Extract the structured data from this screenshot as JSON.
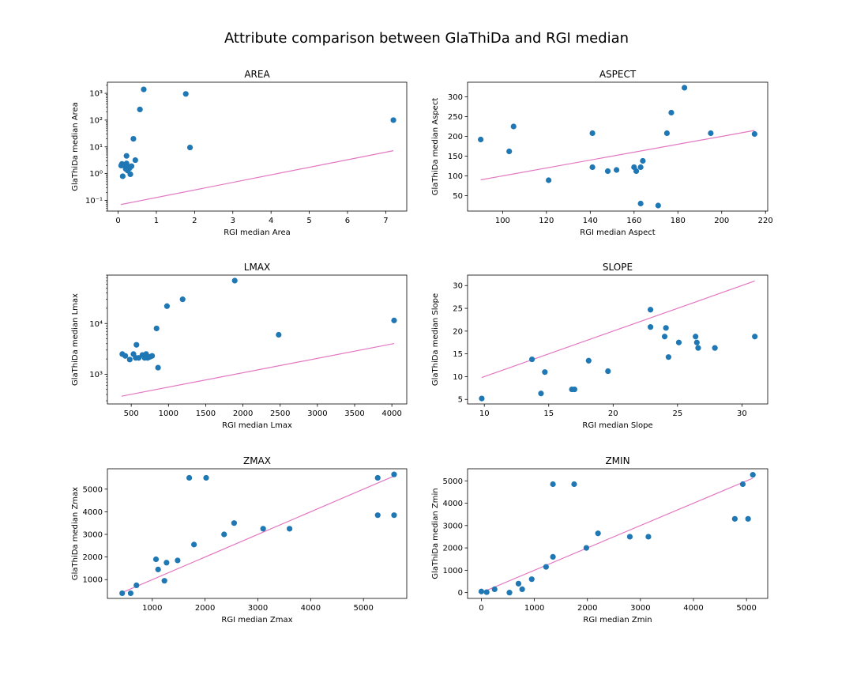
{
  "title": "Attribute comparison between GlaThiDa and RGI median",
  "colors": {
    "point": "#1f77b4",
    "line": "#e377c2",
    "axis": "#000000"
  },
  "chart_data": [
    {
      "type": "scatter",
      "title": "AREA",
      "xlabel": "RGI median Area",
      "ylabel": "GlaThiDa median Area",
      "xscale": "linear",
      "yscale": "log",
      "xlim": [
        -0.28,
        7.55
      ],
      "ylim": [
        0.04,
        2600
      ],
      "xticks": [
        0,
        1,
        2,
        3,
        4,
        5,
        6,
        7
      ],
      "xtick_labels": [
        "0",
        "1",
        "2",
        "3",
        "4",
        "5",
        "6",
        "7"
      ],
      "yticks": [
        0.1,
        1,
        10,
        100,
        1000
      ],
      "ytick_labels": [
        "10⁻¹",
        "10⁰",
        "10¹",
        "10²",
        "10³"
      ],
      "points": [
        [
          0.08,
          2.0
        ],
        [
          0.1,
          2.3
        ],
        [
          0.12,
          0.8
        ],
        [
          0.15,
          2.1
        ],
        [
          0.18,
          1.9
        ],
        [
          0.2,
          1.5
        ],
        [
          0.22,
          2.4
        ],
        [
          0.22,
          4.6
        ],
        [
          0.25,
          1.3
        ],
        [
          0.28,
          1.8
        ],
        [
          0.3,
          1.6
        ],
        [
          0.32,
          0.95
        ],
        [
          0.35,
          1.9
        ],
        [
          0.4,
          20
        ],
        [
          0.45,
          3.2
        ],
        [
          0.57,
          250
        ],
        [
          0.67,
          1400
        ],
        [
          1.77,
          950
        ],
        [
          1.88,
          9.5
        ],
        [
          7.2,
          100
        ]
      ],
      "line": {
        "x": [
          0.07,
          7.2
        ],
        "y": [
          0.07,
          7.2
        ]
      }
    },
    {
      "type": "scatter",
      "title": "ASPECT",
      "xlabel": "RGI median Aspect",
      "ylabel": "GlaThiDa median Aspect",
      "xscale": "linear",
      "yscale": "linear",
      "xlim": [
        84,
        221
      ],
      "ylim": [
        11,
        337
      ],
      "xticks": [
        100,
        120,
        140,
        160,
        180,
        200,
        220
      ],
      "xtick_labels": [
        "100",
        "120",
        "140",
        "160",
        "180",
        "200",
        "220"
      ],
      "yticks": [
        50,
        100,
        150,
        200,
        250,
        300
      ],
      "ytick_labels": [
        "50",
        "100",
        "150",
        "200",
        "250",
        "300"
      ],
      "points": [
        [
          90,
          192
        ],
        [
          103,
          162
        ],
        [
          105,
          225
        ],
        [
          121,
          89
        ],
        [
          141,
          208
        ],
        [
          141,
          122
        ],
        [
          148,
          112
        ],
        [
          152,
          115
        ],
        [
          160,
          122
        ],
        [
          161,
          112
        ],
        [
          163,
          122
        ],
        [
          163,
          30
        ],
        [
          164,
          138
        ],
        [
          171,
          25
        ],
        [
          175,
          208
        ],
        [
          177,
          260
        ],
        [
          183,
          323
        ],
        [
          195,
          208
        ],
        [
          215,
          206
        ]
      ],
      "line": {
        "x": [
          90,
          215
        ],
        "y": [
          90,
          215
        ]
      }
    },
    {
      "type": "scatter",
      "title": "LMAX",
      "xlabel": "RGI median Lmax",
      "ylabel": "GlaThiDa median Lmax",
      "xscale": "linear",
      "yscale": "log",
      "xlim": [
        180,
        4200
      ],
      "ylim": [
        260,
        90000
      ],
      "xticks": [
        500,
        1000,
        1500,
        2000,
        2500,
        3000,
        3500,
        4000
      ],
      "xtick_labels": [
        "500",
        "1000",
        "1500",
        "2000",
        "2500",
        "3000",
        "3500",
        "4000"
      ],
      "yticks": [
        1000,
        10000
      ],
      "ytick_labels": [
        "10³",
        "10⁴"
      ],
      "points": [
        [
          380,
          2500
        ],
        [
          420,
          2300
        ],
        [
          480,
          1950
        ],
        [
          530,
          2500
        ],
        [
          560,
          2100
        ],
        [
          570,
          3800
        ],
        [
          600,
          2100
        ],
        [
          650,
          2400
        ],
        [
          680,
          2100
        ],
        [
          700,
          2500
        ],
        [
          720,
          2100
        ],
        [
          750,
          2200
        ],
        [
          780,
          2300
        ],
        [
          840,
          8000
        ],
        [
          860,
          1350
        ],
        [
          980,
          22000
        ],
        [
          1190,
          30000
        ],
        [
          1890,
          70000
        ],
        [
          2480,
          6000
        ],
        [
          4030,
          11500
        ]
      ],
      "line": {
        "x": [
          370,
          4030
        ],
        "y": [
          370,
          4030
        ]
      }
    },
    {
      "type": "scatter",
      "title": "SLOPE",
      "xlabel": "RGI median Slope",
      "ylabel": "GlaThiDa median Slope",
      "xscale": "linear",
      "yscale": "linear",
      "xlim": [
        8.7,
        32.0
      ],
      "ylim": [
        4.0,
        32.3
      ],
      "xticks": [
        10,
        15,
        20,
        25,
        30
      ],
      "xtick_labels": [
        "10",
        "15",
        "20",
        "25",
        "30"
      ],
      "yticks": [
        5,
        10,
        15,
        20,
        25,
        30
      ],
      "ytick_labels": [
        "5",
        "10",
        "15",
        "20",
        "25",
        "30"
      ],
      "points": [
        [
          9.8,
          5.2
        ],
        [
          13.7,
          13.8
        ],
        [
          14.4,
          6.3
        ],
        [
          14.7,
          11.0
        ],
        [
          16.8,
          7.2
        ],
        [
          17.0,
          7.2
        ],
        [
          18.1,
          13.5
        ],
        [
          19.6,
          11.2
        ],
        [
          22.9,
          24.7
        ],
        [
          22.9,
          20.9
        ],
        [
          24.0,
          18.8
        ],
        [
          24.1,
          20.7
        ],
        [
          24.3,
          14.3
        ],
        [
          25.1,
          17.5
        ],
        [
          26.4,
          18.8
        ],
        [
          26.5,
          17.5
        ],
        [
          26.6,
          16.3
        ],
        [
          27.9,
          16.3
        ],
        [
          31.0,
          18.8
        ]
      ],
      "line": {
        "x": [
          9.8,
          31.0
        ],
        "y": [
          9.8,
          31.0
        ]
      }
    },
    {
      "type": "scatter",
      "title": "ZMAX",
      "xlabel": "RGI median Zmax",
      "ylabel": "GlaThiDa median Zmax",
      "xscale": "linear",
      "yscale": "linear",
      "xlim": [
        150,
        5820
      ],
      "ylim": [
        170,
        5900
      ],
      "xticks": [
        1000,
        2000,
        3000,
        4000,
        5000
      ],
      "xtick_labels": [
        "1000",
        "2000",
        "3000",
        "4000",
        "5000"
      ],
      "yticks": [
        1000,
        2000,
        3000,
        4000,
        5000
      ],
      "ytick_labels": [
        "1000",
        "2000",
        "3000",
        "4000",
        "5000"
      ],
      "points": [
        [
          430,
          400
        ],
        [
          590,
          400
        ],
        [
          700,
          750
        ],
        [
          1070,
          1900
        ],
        [
          1110,
          1450
        ],
        [
          1230,
          950
        ],
        [
          1270,
          1750
        ],
        [
          1480,
          1850
        ],
        [
          1700,
          5500
        ],
        [
          1790,
          2550
        ],
        [
          2020,
          5500
        ],
        [
          2360,
          3000
        ],
        [
          2550,
          3500
        ],
        [
          3100,
          3250
        ],
        [
          3600,
          3250
        ],
        [
          5270,
          5500
        ],
        [
          5270,
          3850
        ],
        [
          5580,
          5650
        ],
        [
          5580,
          3850
        ]
      ],
      "line": {
        "x": [
          430,
          5580
        ],
        "y": [
          430,
          5580
        ]
      }
    },
    {
      "type": "scatter",
      "title": "ZMIN",
      "xlabel": "RGI median Zmin",
      "ylabel": "GlaThiDa median Zmin",
      "xscale": "linear",
      "yscale": "linear",
      "xlim": [
        -260,
        5400
      ],
      "ylim": [
        -260,
        5540
      ],
      "xticks": [
        0,
        1000,
        2000,
        3000,
        4000,
        5000
      ],
      "xtick_labels": [
        "0",
        "1000",
        "2000",
        "3000",
        "4000",
        "5000"
      ],
      "yticks": [
        0,
        1000,
        2000,
        3000,
        4000,
        5000
      ],
      "ytick_labels": [
        "0",
        "1000",
        "2000",
        "3000",
        "4000",
        "5000"
      ],
      "points": [
        [
          0,
          50
        ],
        [
          100,
          20
        ],
        [
          250,
          150
        ],
        [
          530,
          0
        ],
        [
          700,
          400
        ],
        [
          770,
          150
        ],
        [
          950,
          600
        ],
        [
          1220,
          1150
        ],
        [
          1350,
          1600
        ],
        [
          1350,
          4850
        ],
        [
          1750,
          4850
        ],
        [
          1980,
          2000
        ],
        [
          2200,
          2650
        ],
        [
          2800,
          2500
        ],
        [
          3150,
          2500
        ],
        [
          4780,
          3300
        ],
        [
          4930,
          4850
        ],
        [
          5030,
          3300
        ],
        [
          5120,
          5270
        ]
      ],
      "line": {
        "x": [
          0,
          5120
        ],
        "y": [
          0,
          5120
        ]
      }
    }
  ]
}
